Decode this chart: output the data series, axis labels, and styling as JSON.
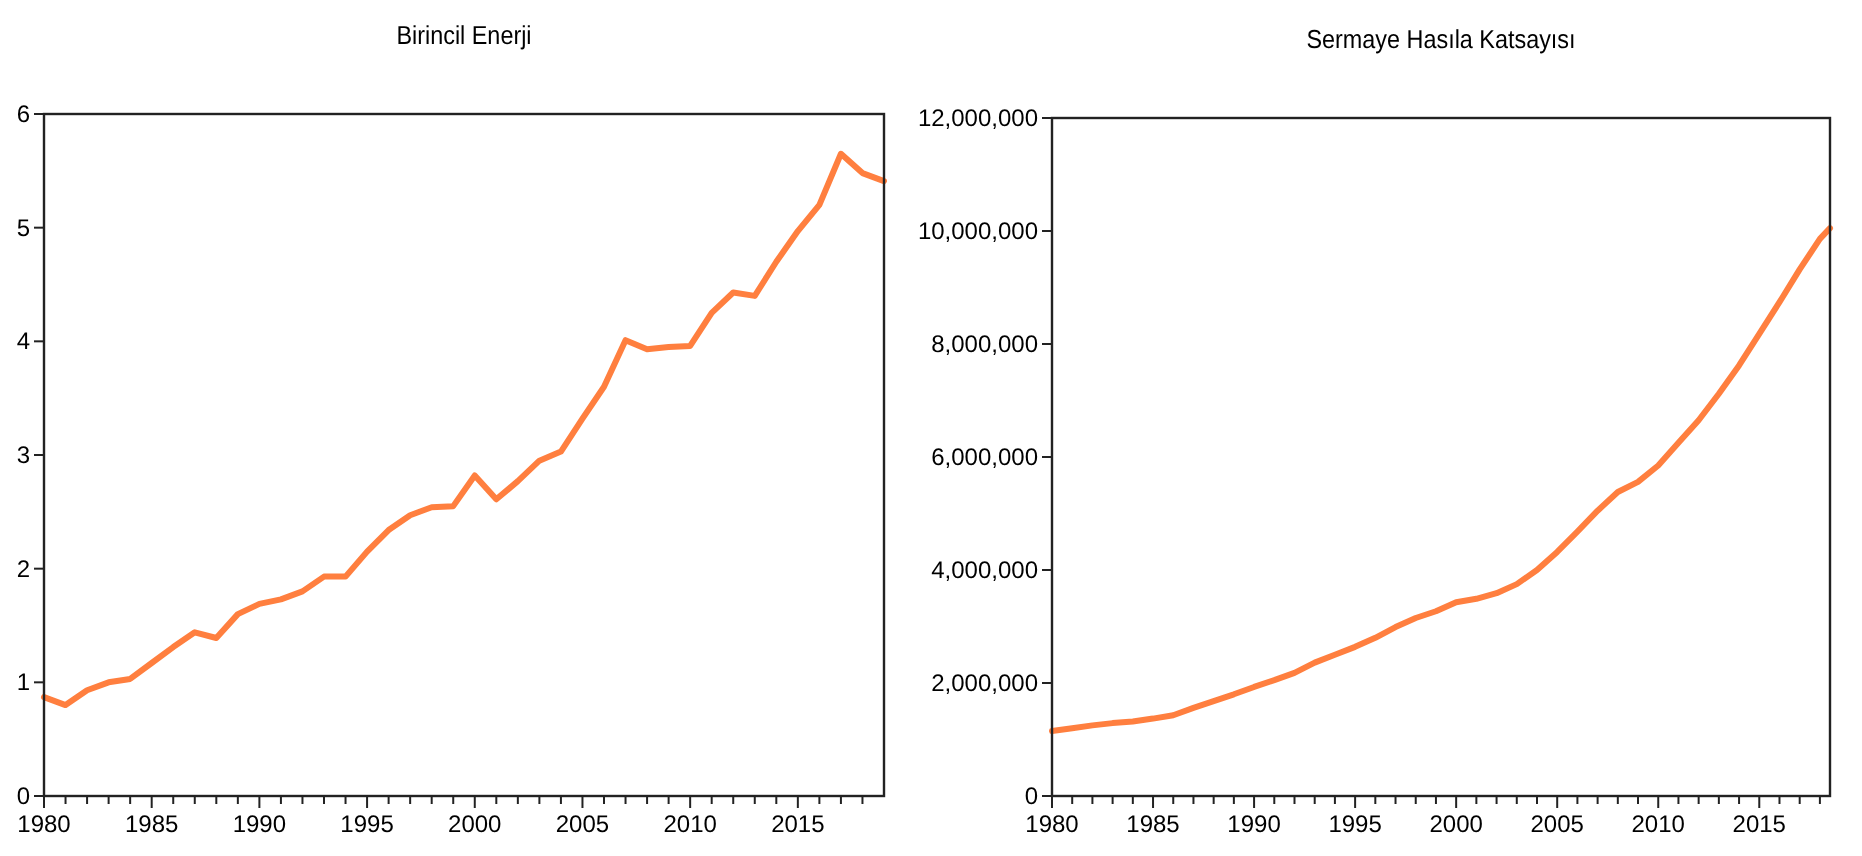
{
  "chart_data": [
    {
      "type": "line",
      "title": "Birincil Enerji",
      "xlim": [
        1980,
        2019
      ],
      "ylim": [
        0,
        6
      ],
      "yticks": [
        0,
        1,
        2,
        3,
        4,
        5,
        6
      ],
      "xticks": [
        1980,
        {
          "value": 1981,
          "label": null
        },
        {
          "value": 1982,
          "label": null
        },
        {
          "value": 1983,
          "label": null
        },
        {
          "value": 1984,
          "label": null
        },
        1985,
        {
          "value": 1986,
          "label": null
        },
        {
          "value": 1987,
          "label": null
        },
        {
          "value": 1988,
          "label": null
        },
        {
          "value": 1989,
          "label": null
        },
        1990,
        {
          "value": 1991,
          "label": null
        },
        {
          "value": 1992,
          "label": null
        },
        {
          "value": 1993,
          "label": null
        },
        {
          "value": 1994,
          "label": null
        },
        1995,
        {
          "value": 1996,
          "label": null
        },
        {
          "value": 1997,
          "label": null
        },
        {
          "value": 1998,
          "label": null
        },
        {
          "value": 1999,
          "label": null
        },
        2000,
        {
          "value": 2001,
          "label": null
        },
        {
          "value": 2002,
          "label": null
        },
        {
          "value": 2003,
          "label": null
        },
        {
          "value": 2004,
          "label": null
        },
        2005,
        {
          "value": 2006,
          "label": null
        },
        {
          "value": 2007,
          "label": null
        },
        {
          "value": 2008,
          "label": null
        },
        {
          "value": 2009,
          "label": null
        },
        2010,
        {
          "value": 2011,
          "label": null
        },
        {
          "value": 2012,
          "label": null
        },
        {
          "value": 2013,
          "label": null
        },
        {
          "value": 2014,
          "label": null
        },
        2015,
        {
          "value": 2016,
          "label": null
        },
        {
          "value": 2017,
          "label": null
        },
        {
          "value": 2018,
          "label": null
        }
      ],
      "x": [
        1980,
        1981,
        1982,
        1983,
        1984,
        1985,
        1986,
        1987,
        1988,
        1989,
        1990,
        1991,
        1992,
        1993,
        1994,
        1995,
        1996,
        1997,
        1998,
        1999,
        2000,
        2001,
        2002,
        2003,
        2004,
        2005,
        2006,
        2007,
        2008,
        2009,
        2010,
        2011,
        2012,
        2013,
        2014,
        2015,
        2016,
        2017,
        2018,
        2019
      ],
      "series": [
        {
          "color": "#ff7f3f",
          "values": [
            0.87,
            0.8,
            0.93,
            1.0,
            1.03,
            1.17,
            1.31,
            1.44,
            1.39,
            1.6,
            1.69,
            1.73,
            1.8,
            1.93,
            1.93,
            2.15,
            2.34,
            2.47,
            2.54,
            2.55,
            2.82,
            2.61,
            2.77,
            2.95,
            3.03,
            3.32,
            3.6,
            4.01,
            3.93,
            3.95,
            3.96,
            4.25,
            4.43,
            4.4,
            4.7,
            4.97,
            5.2,
            5.65,
            5.48,
            5.41
          ]
        }
      ],
      "grid": false
    },
    {
      "type": "line",
      "title": "Sermaye Hasıla Katsayısı",
      "xlim": [
        1980,
        2018.5
      ],
      "ylim": [
        0,
        12000000
      ],
      "yticks": [
        {
          "value": 0,
          "label": "0"
        },
        {
          "value": 2000000,
          "label": "2,000,000"
        },
        {
          "value": 4000000,
          "label": "4,000,000"
        },
        {
          "value": 6000000,
          "label": "6,000,000"
        },
        {
          "value": 8000000,
          "label": "8,000,000"
        },
        {
          "value": 10000000,
          "label": "10,000,000"
        },
        {
          "value": 12000000,
          "label": "12,000,000"
        }
      ],
      "xticks": [
        1980,
        {
          "value": 1981,
          "label": null
        },
        {
          "value": 1982,
          "label": null
        },
        {
          "value": 1983,
          "label": null
        },
        {
          "value": 1984,
          "label": null
        },
        1985,
        {
          "value": 1986,
          "label": null
        },
        {
          "value": 1987,
          "label": null
        },
        {
          "value": 1988,
          "label": null
        },
        {
          "value": 1989,
          "label": null
        },
        1990,
        {
          "value": 1991,
          "label": null
        },
        {
          "value": 1992,
          "label": null
        },
        {
          "value": 1993,
          "label": null
        },
        {
          "value": 1994,
          "label": null
        },
        1995,
        {
          "value": 1996,
          "label": null
        },
        {
          "value": 1997,
          "label": null
        },
        {
          "value": 1998,
          "label": null
        },
        {
          "value": 1999,
          "label": null
        },
        2000,
        {
          "value": 2001,
          "label": null
        },
        {
          "value": 2002,
          "label": null
        },
        {
          "value": 2003,
          "label": null
        },
        {
          "value": 2004,
          "label": null
        },
        2005,
        {
          "value": 2006,
          "label": null
        },
        {
          "value": 2007,
          "label": null
        },
        {
          "value": 2008,
          "label": null
        },
        {
          "value": 2009,
          "label": null
        },
        2010,
        {
          "value": 2011,
          "label": null
        },
        {
          "value": 2012,
          "label": null
        },
        {
          "value": 2013,
          "label": null
        },
        {
          "value": 2014,
          "label": null
        },
        2015,
        {
          "value": 2016,
          "label": null
        },
        {
          "value": 2017,
          "label": null
        },
        {
          "value": 2018,
          "label": null
        }
      ],
      "x": [
        1980,
        1981,
        1982,
        1983,
        1984,
        1985,
        1986,
        1987,
        1988,
        1989,
        1990,
        1991,
        1992,
        1993,
        1994,
        1995,
        1996,
        1997,
        1998,
        1999,
        2000,
        2001,
        2002,
        2003,
        2004,
        2005,
        2006,
        2007,
        2008,
        2009,
        2010,
        2011,
        2012,
        2013,
        2014,
        2015,
        2016,
        2017,
        2018,
        2018.5
      ],
      "series": [
        {
          "color": "#ff7f3f",
          "values": [
            1150000,
            1200000,
            1250000,
            1290000,
            1320000,
            1370000,
            1430000,
            1560000,
            1680000,
            1800000,
            1930000,
            2050000,
            2180000,
            2360000,
            2500000,
            2640000,
            2800000,
            2990000,
            3150000,
            3270000,
            3430000,
            3490000,
            3590000,
            3750000,
            4000000,
            4320000,
            4680000,
            5050000,
            5380000,
            5560000,
            5850000,
            6250000,
            6650000,
            7120000,
            7620000,
            8180000,
            8740000,
            9320000,
            9860000,
            10050000
          ]
        }
      ],
      "grid": false
    }
  ]
}
